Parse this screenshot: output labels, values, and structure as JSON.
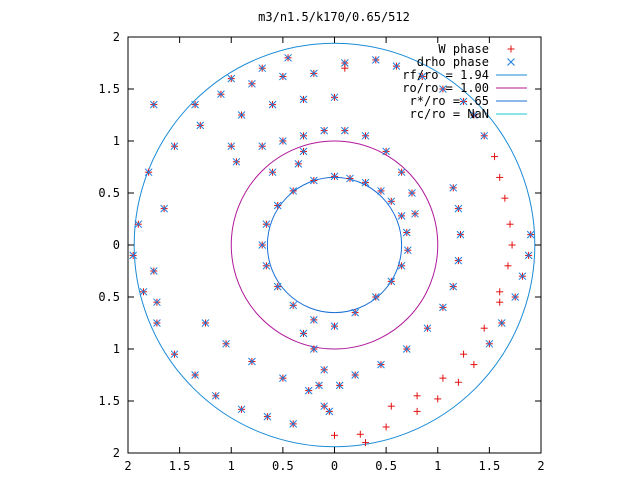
{
  "chart_data": {
    "type": "scatter",
    "title": "m3/n1.5/k170/0.65/512",
    "xlabel": "",
    "ylabel": "",
    "xlim": [
      -2,
      2
    ],
    "ylim": [
      -2,
      2
    ],
    "x_ticks": [
      {
        "value": -2,
        "label": "2"
      },
      {
        "value": -1.5,
        "label": "1.5"
      },
      {
        "value": -1,
        "label": "1"
      },
      {
        "value": -0.5,
        "label": "0.5"
      },
      {
        "value": 0,
        "label": "0"
      },
      {
        "value": 0.5,
        "label": "0.5"
      },
      {
        "value": 1,
        "label": "1"
      },
      {
        "value": 1.5,
        "label": "1.5"
      },
      {
        "value": 2,
        "label": "2"
      }
    ],
    "y_ticks": [
      {
        "value": 2,
        "label": "2"
      },
      {
        "value": 1.5,
        "label": "1.5"
      },
      {
        "value": 1,
        "label": "1"
      },
      {
        "value": 0.5,
        "label": "0.5"
      },
      {
        "value": 0,
        "label": "0"
      },
      {
        "value": -0.5,
        "label": "0.5"
      },
      {
        "value": -1,
        "label": "1"
      },
      {
        "value": -1.5,
        "label": "1.5"
      },
      {
        "value": -2,
        "label": "2"
      }
    ],
    "grid": false,
    "legend_position": "top-right",
    "legend": [
      {
        "label": "W phase",
        "kind": "plus",
        "color": "#e01010"
      },
      {
        "label": "drho phase",
        "kind": "cross",
        "color": "#1f7fe0"
      },
      {
        "label": "rf/ro = 1.94",
        "kind": "line",
        "color": "#1a8bd6"
      },
      {
        "label": "ro/ro = 1.00",
        "kind": "line",
        "color": "#b0189a"
      },
      {
        "label": "r*/ro = .65",
        "kind": "line",
        "color": "#1a6fd6"
      },
      {
        "label": "rc/ro = NaN",
        "kind": "line",
        "color": "#18c8d0"
      }
    ],
    "circles": [
      {
        "name": "rf/ro = 1.94",
        "radius": 1.94,
        "color": "#1a8bd6"
      },
      {
        "name": "ro/ro = 1.00",
        "radius": 1.0,
        "color": "#b0189a"
      },
      {
        "name": "r*/ro = .65",
        "radius": 0.65,
        "color": "#1a6fd6"
      }
    ],
    "series": [
      {
        "name": "W phase",
        "marker": "plus",
        "color": "#e01010",
        "points": [
          [
            0.0,
            0.66
          ],
          [
            0.15,
            0.64
          ],
          [
            0.3,
            0.6
          ],
          [
            0.45,
            0.52
          ],
          [
            0.55,
            0.42
          ],
          [
            0.65,
            0.28
          ],
          [
            0.7,
            0.12
          ],
          [
            0.71,
            -0.05
          ],
          [
            0.65,
            -0.2
          ],
          [
            0.55,
            -0.35
          ],
          [
            0.4,
            -0.5
          ],
          [
            0.2,
            -0.65
          ],
          [
            0.0,
            -0.78
          ],
          [
            -0.2,
            -0.72
          ],
          [
            -0.4,
            -0.58
          ],
          [
            -0.55,
            -0.4
          ],
          [
            -0.66,
            -0.2
          ],
          [
            -0.7,
            0.0
          ],
          [
            -0.66,
            0.2
          ],
          [
            -0.55,
            0.38
          ],
          [
            -0.4,
            0.52
          ],
          [
            -0.2,
            0.62
          ],
          [
            -0.7,
            0.95
          ],
          [
            -0.5,
            1.0
          ],
          [
            -0.3,
            1.05
          ],
          [
            -0.1,
            1.1
          ],
          [
            0.1,
            1.1
          ],
          [
            0.3,
            1.05
          ],
          [
            0.5,
            0.9
          ],
          [
            0.65,
            0.7
          ],
          [
            0.75,
            0.5
          ],
          [
            0.78,
            0.3
          ],
          [
            -0.9,
            1.25
          ],
          [
            -0.6,
            1.35
          ],
          [
            -0.3,
            1.4
          ],
          [
            0.0,
            1.42
          ],
          [
            -1.35,
            1.35
          ],
          [
            -1.1,
            1.45
          ],
          [
            -0.8,
            1.55
          ],
          [
            -0.5,
            1.62
          ],
          [
            -0.2,
            1.65
          ],
          [
            -1.0,
            1.6
          ],
          [
            -0.7,
            1.7
          ],
          [
            -0.45,
            1.8
          ],
          [
            0.1,
            1.75
          ],
          [
            0.4,
            1.78
          ],
          [
            0.6,
            1.72
          ],
          [
            0.85,
            1.62
          ],
          [
            1.05,
            1.5
          ],
          [
            1.25,
            1.38
          ],
          [
            1.35,
            1.25
          ],
          [
            1.45,
            1.05
          ],
          [
            1.55,
            0.85
          ],
          [
            1.6,
            0.65
          ],
          [
            1.65,
            0.45
          ],
          [
            1.7,
            0.2
          ],
          [
            1.72,
            0.0
          ],
          [
            1.68,
            -0.2
          ],
          [
            1.6,
            -0.45
          ],
          [
            1.15,
            0.55
          ],
          [
            1.2,
            0.35
          ],
          [
            1.22,
            0.1
          ],
          [
            1.2,
            -0.15
          ],
          [
            1.15,
            -0.4
          ],
          [
            1.05,
            -0.6
          ],
          [
            0.9,
            -0.8
          ],
          [
            0.7,
            -1.0
          ],
          [
            0.45,
            -1.15
          ],
          [
            0.2,
            -1.25
          ],
          [
            0.05,
            -1.35
          ],
          [
            0.1,
            1.7
          ],
          [
            1.9,
            0.1
          ],
          [
            1.88,
            -0.1
          ],
          [
            1.82,
            -0.3
          ],
          [
            1.75,
            -0.5
          ],
          [
            1.62,
            -0.75
          ],
          [
            1.5,
            -0.95
          ],
          [
            1.35,
            -1.15
          ],
          [
            1.2,
            -1.32
          ],
          [
            1.0,
            -1.48
          ],
          [
            0.8,
            -1.6
          ],
          [
            0.5,
            -1.75
          ],
          [
            0.25,
            -1.82
          ],
          [
            0.0,
            -1.83
          ],
          [
            0.3,
            -1.9
          ],
          [
            0.55,
            -1.55
          ],
          [
            0.8,
            -1.45
          ],
          [
            1.05,
            -1.28
          ],
          [
            1.25,
            -1.05
          ],
          [
            1.45,
            -0.8
          ],
          [
            1.6,
            -0.55
          ],
          [
            -1.25,
            -0.75
          ],
          [
            -1.05,
            -0.95
          ],
          [
            -0.8,
            -1.12
          ],
          [
            -0.5,
            -1.28
          ],
          [
            -0.25,
            -1.4
          ],
          [
            -0.1,
            -1.55
          ],
          [
            -0.3,
            -0.85
          ],
          [
            -0.2,
            -1.0
          ],
          [
            -0.1,
            -1.2
          ],
          [
            -0.15,
            -1.35
          ],
          [
            -1.75,
            1.35
          ],
          [
            -1.9,
            0.2
          ],
          [
            -1.95,
            -0.1
          ],
          [
            -1.85,
            -0.45
          ],
          [
            -1.72,
            -0.75
          ],
          [
            -1.55,
            -1.05
          ],
          [
            -1.35,
            -1.25
          ],
          [
            -1.15,
            -1.45
          ],
          [
            -0.9,
            -1.58
          ],
          [
            -0.65,
            -1.65
          ],
          [
            -0.4,
            -1.72
          ],
          [
            -0.05,
            -1.6
          ],
          [
            -1.75,
            -0.25
          ],
          [
            -1.72,
            -0.55
          ],
          [
            -1.65,
            0.35
          ],
          [
            -1.8,
            0.7
          ],
          [
            -1.55,
            0.95
          ],
          [
            -1.3,
            1.15
          ],
          [
            -1.0,
            0.95
          ],
          [
            -0.95,
            0.8
          ],
          [
            -0.6,
            0.7
          ],
          [
            -0.35,
            0.78
          ],
          [
            -0.3,
            0.9
          ]
        ]
      },
      {
        "name": "drho phase",
        "marker": "cross",
        "color": "#1f7fe0",
        "points": [
          [
            0.0,
            0.66
          ],
          [
            0.15,
            0.64
          ],
          [
            0.3,
            0.6
          ],
          [
            0.45,
            0.52
          ],
          [
            0.55,
            0.42
          ],
          [
            0.65,
            0.28
          ],
          [
            0.7,
            0.12
          ],
          [
            0.71,
            -0.05
          ],
          [
            0.65,
            -0.2
          ],
          [
            0.55,
            -0.35
          ],
          [
            0.4,
            -0.5
          ],
          [
            0.2,
            -0.65
          ],
          [
            0.0,
            -0.78
          ],
          [
            -0.2,
            -0.72
          ],
          [
            -0.4,
            -0.58
          ],
          [
            -0.55,
            -0.4
          ],
          [
            -0.66,
            -0.2
          ],
          [
            -0.7,
            0.0
          ],
          [
            -0.66,
            0.2
          ],
          [
            -0.55,
            0.38
          ],
          [
            -0.4,
            0.52
          ],
          [
            -0.2,
            0.62
          ],
          [
            -0.7,
            0.95
          ],
          [
            -0.5,
            1.0
          ],
          [
            -0.3,
            1.05
          ],
          [
            -0.1,
            1.1
          ],
          [
            0.1,
            1.1
          ],
          [
            0.3,
            1.05
          ],
          [
            0.5,
            0.9
          ],
          [
            0.65,
            0.7
          ],
          [
            0.75,
            0.5
          ],
          [
            0.78,
            0.3
          ],
          [
            -0.9,
            1.25
          ],
          [
            -0.6,
            1.35
          ],
          [
            -0.3,
            1.4
          ],
          [
            0.0,
            1.42
          ],
          [
            -1.35,
            1.35
          ],
          [
            -1.1,
            1.45
          ],
          [
            -0.8,
            1.55
          ],
          [
            -0.5,
            1.62
          ],
          [
            -0.2,
            1.65
          ],
          [
            -1.0,
            1.6
          ],
          [
            -0.7,
            1.7
          ],
          [
            -0.45,
            1.8
          ],
          [
            0.1,
            1.75
          ],
          [
            0.4,
            1.78
          ],
          [
            0.6,
            1.72
          ],
          [
            0.85,
            1.62
          ],
          [
            1.05,
            1.5
          ],
          [
            1.25,
            1.38
          ],
          [
            1.35,
            1.25
          ],
          [
            1.45,
            1.05
          ],
          [
            1.15,
            0.55
          ],
          [
            1.2,
            0.35
          ],
          [
            1.22,
            0.1
          ],
          [
            1.2,
            -0.15
          ],
          [
            1.15,
            -0.4
          ],
          [
            1.05,
            -0.6
          ],
          [
            0.9,
            -0.8
          ],
          [
            0.7,
            -1.0
          ],
          [
            0.45,
            -1.15
          ],
          [
            0.2,
            -1.25
          ],
          [
            0.05,
            -1.35
          ],
          [
            1.9,
            0.1
          ],
          [
            1.88,
            -0.1
          ],
          [
            1.82,
            -0.3
          ],
          [
            1.75,
            -0.5
          ],
          [
            1.62,
            -0.75
          ],
          [
            1.5,
            -0.95
          ],
          [
            -1.25,
            -0.75
          ],
          [
            -1.05,
            -0.95
          ],
          [
            -0.8,
            -1.12
          ],
          [
            -0.5,
            -1.28
          ],
          [
            -0.25,
            -1.4
          ],
          [
            -0.1,
            -1.55
          ],
          [
            -0.3,
            -0.85
          ],
          [
            -0.2,
            -1.0
          ],
          [
            -0.1,
            -1.2
          ],
          [
            -0.15,
            -1.35
          ],
          [
            -1.75,
            1.35
          ],
          [
            -1.9,
            0.2
          ],
          [
            -1.95,
            -0.1
          ],
          [
            -1.85,
            -0.45
          ],
          [
            -1.72,
            -0.75
          ],
          [
            -1.55,
            -1.05
          ],
          [
            -1.35,
            -1.25
          ],
          [
            -1.15,
            -1.45
          ],
          [
            -0.9,
            -1.58
          ],
          [
            -0.65,
            -1.65
          ],
          [
            -0.4,
            -1.72
          ],
          [
            -0.05,
            -1.6
          ],
          [
            -1.75,
            -0.25
          ],
          [
            -1.72,
            -0.55
          ],
          [
            -1.65,
            0.35
          ],
          [
            -1.8,
            0.7
          ],
          [
            -1.55,
            0.95
          ],
          [
            -1.3,
            1.15
          ],
          [
            -1.0,
            0.95
          ],
          [
            -0.95,
            0.8
          ],
          [
            -0.6,
            0.7
          ],
          [
            -0.35,
            0.78
          ],
          [
            -0.3,
            0.9
          ]
        ]
      }
    ]
  }
}
